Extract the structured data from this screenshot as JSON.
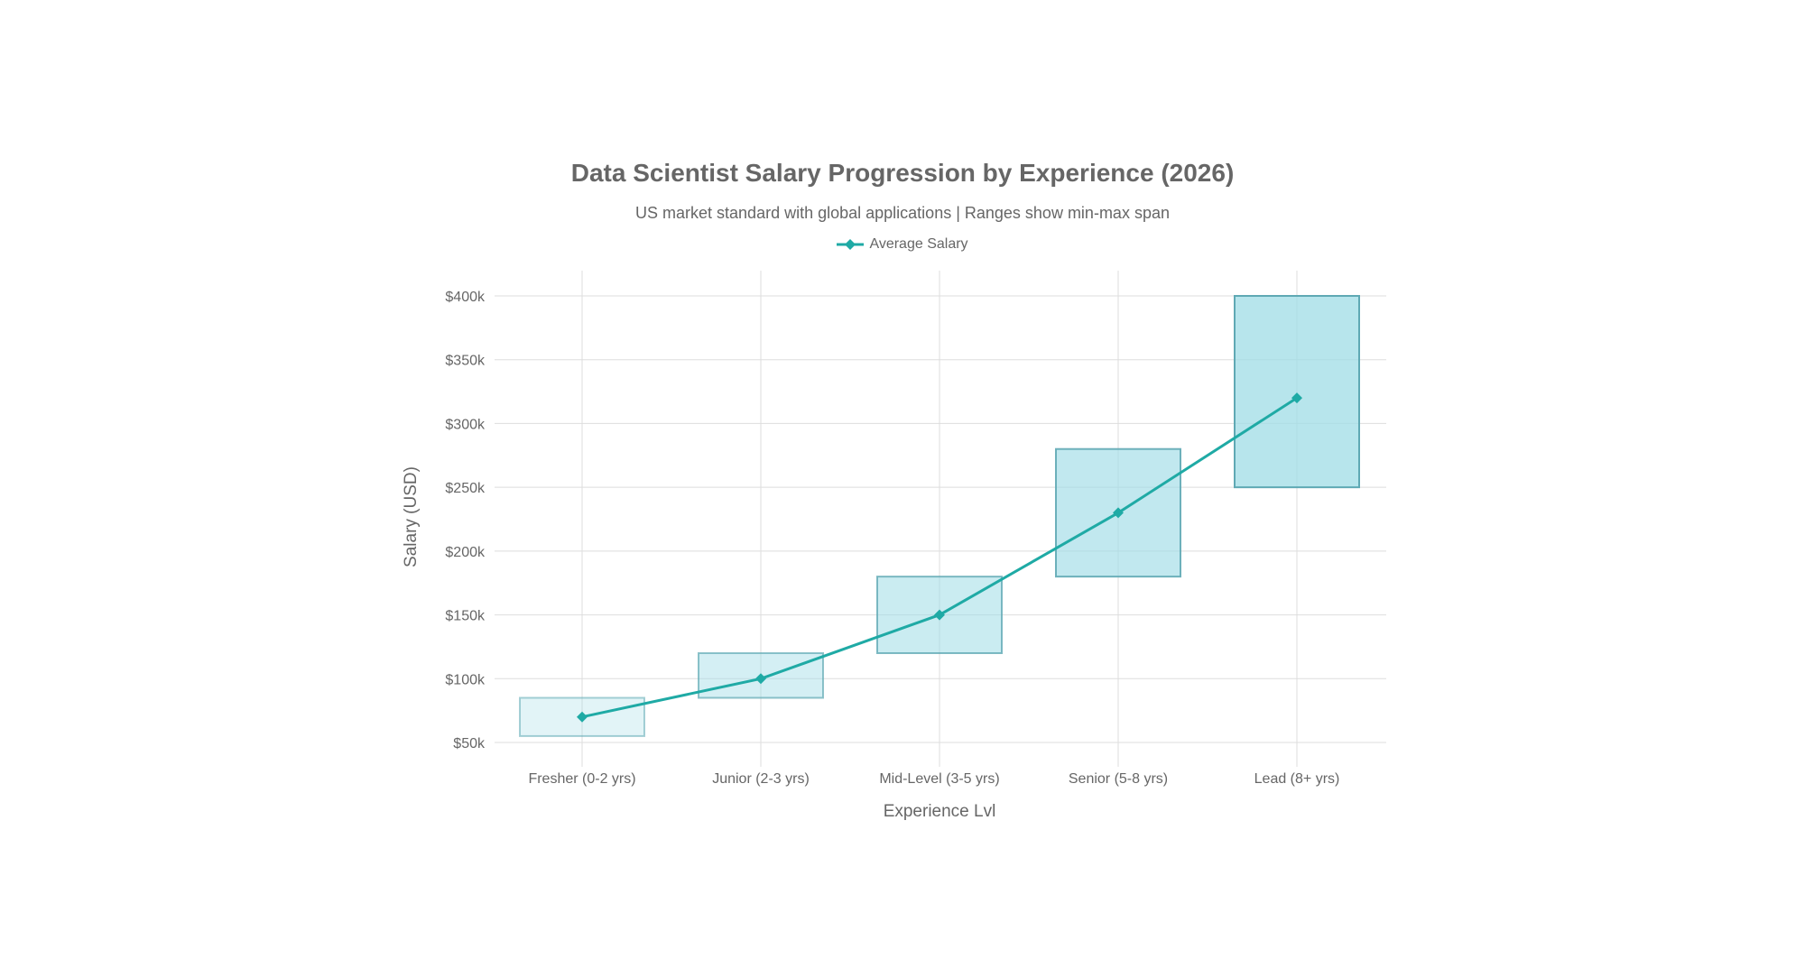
{
  "chart_data": {
    "type": "bar",
    "title": "Data Scientist Salary Progression by Experience (2026)",
    "subtitle": "US market standard with global applications | Ranges show min-max span",
    "xlabel": "Experience Lvl",
    "ylabel": "Salary (USD)",
    "categories": [
      "Fresher (0-2 yrs)",
      "Junior (2-3 yrs)",
      "Mid-Level (3-5 yrs)",
      "Senior (5-8 yrs)",
      "Lead (8+ yrs)"
    ],
    "series": [
      {
        "name": "Average Salary",
        "type": "line",
        "values": [
          70000,
          100000,
          150000,
          230000,
          320000
        ]
      }
    ],
    "ranges": [
      {
        "min": 55000,
        "max": 85000
      },
      {
        "min": 85000,
        "max": 120000
      },
      {
        "min": 120000,
        "max": 180000
      },
      {
        "min": 180000,
        "max": 280000
      },
      {
        "min": 250000,
        "max": 400000
      }
    ],
    "range_fill_opacities": [
      0.3,
      0.45,
      0.55,
      0.65,
      0.75
    ],
    "ylim": [
      50000,
      400000
    ],
    "yticks": [
      50000,
      100000,
      150000,
      200000,
      250000,
      300000,
      350000,
      400000
    ],
    "ytick_labels": [
      "$50k",
      "$100k",
      "$150k",
      "$200k",
      "$250k",
      "$300k",
      "$350k",
      "$400k"
    ],
    "grid": true,
    "legend_position": "top-center",
    "colors": {
      "line": "#1FAAA5",
      "range_fill": "#9FDCE6",
      "range_stroke": "#5FA9B4",
      "grid": "#DDDDDD",
      "text": "#666666"
    }
  }
}
